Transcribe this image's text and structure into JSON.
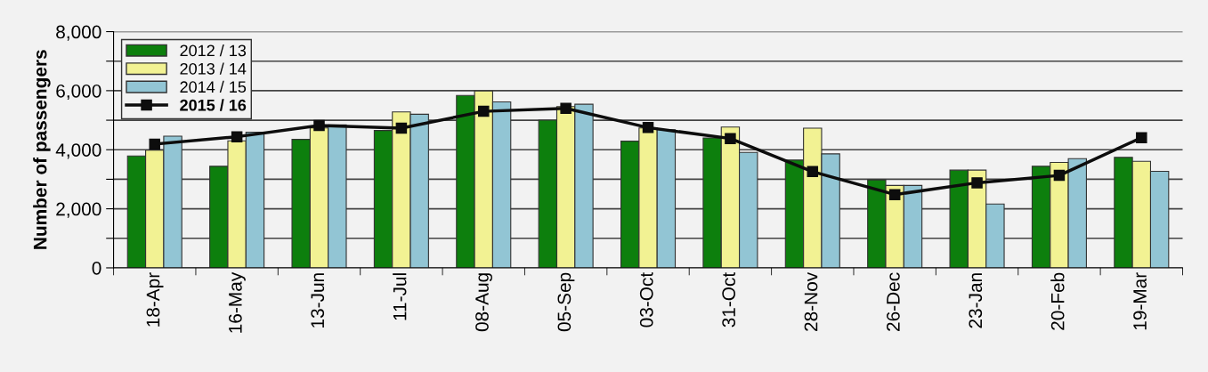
{
  "chart_data": {
    "type": "bar",
    "ylabel": "Number of passengers",
    "categories": [
      "18-Apr",
      "16-May",
      "13-Jun",
      "11-Jul",
      "08-Aug",
      "05-Sep",
      "03-Oct",
      "31-Oct",
      "28-Nov",
      "26-Dec",
      "23-Jan",
      "20-Feb",
      "19-Mar"
    ],
    "series": [
      {
        "name": "2012 / 13",
        "color": "#0d7f0d",
        "values": [
          3790,
          3440,
          4350,
          4650,
          5840,
          5000,
          4290,
          4400,
          3650,
          2980,
          3310,
          3440,
          3740
        ]
      },
      {
        "name": "2013 / 14",
        "color": "#f2f293",
        "values": [
          3990,
          4300,
          4740,
          5280,
          5990,
          5460,
          4740,
          4770,
          4730,
          2790,
          3310,
          3570,
          3610
        ]
      },
      {
        "name": "2014 / 15",
        "color": "#92c5d4",
        "values": [
          4460,
          4590,
          4840,
          5200,
          5620,
          5540,
          4680,
          3910,
          3860,
          2790,
          2160,
          3700,
          3270
        ]
      },
      {
        "name": "2015 / 16",
        "type": "line",
        "color": "#0d0d0d",
        "marker": "square",
        "line_style": "solid",
        "values": [
          4190,
          4440,
          4820,
          4730,
          5300,
          5400,
          4750,
          4380,
          3260,
          2480,
          2880,
          3130,
          4410
        ]
      }
    ],
    "ylim": [
      0,
      8000
    ],
    "yticks": [
      {
        "value": 0,
        "label": "0"
      },
      {
        "value": 1000,
        "label": null
      },
      {
        "value": 2000,
        "label": "2,000"
      },
      {
        "value": 3000,
        "label": null
      },
      {
        "value": 4000,
        "label": "4,000"
      },
      {
        "value": 5000,
        "label": null
      },
      {
        "value": 6000,
        "label": "6,000"
      },
      {
        "value": 7000,
        "label": null
      },
      {
        "value": 8000,
        "label": "8,000"
      }
    ],
    "grid": "y",
    "legend": "upper left"
  }
}
